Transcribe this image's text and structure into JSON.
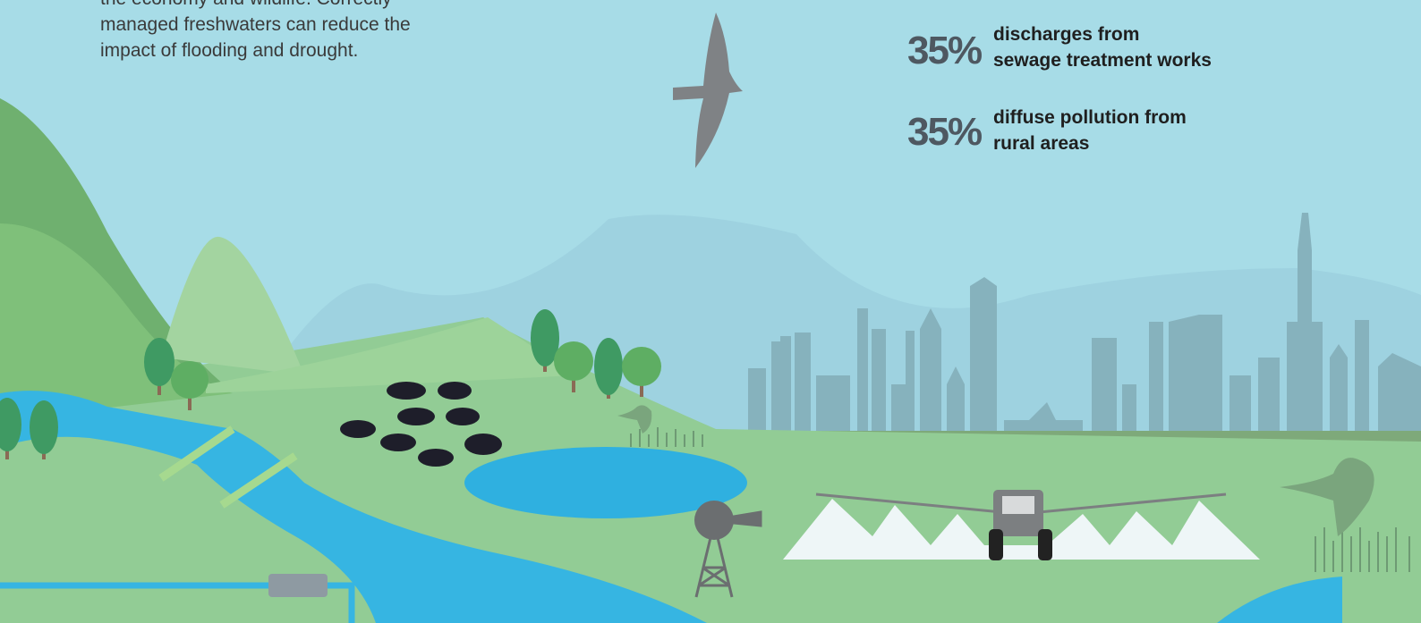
{
  "intro": {
    "lines": [
      "the economy and wildlife. Correctly",
      "managed freshwaters can reduce the",
      "impact of flooding and drought."
    ]
  },
  "stats": [
    {
      "value": "35%",
      "label_lines": [
        "discharges from",
        "sewage treatment works"
      ]
    },
    {
      "value": "35%",
      "label_lines": [
        "diffuse pollution from",
        "rural areas"
      ]
    }
  ]
}
